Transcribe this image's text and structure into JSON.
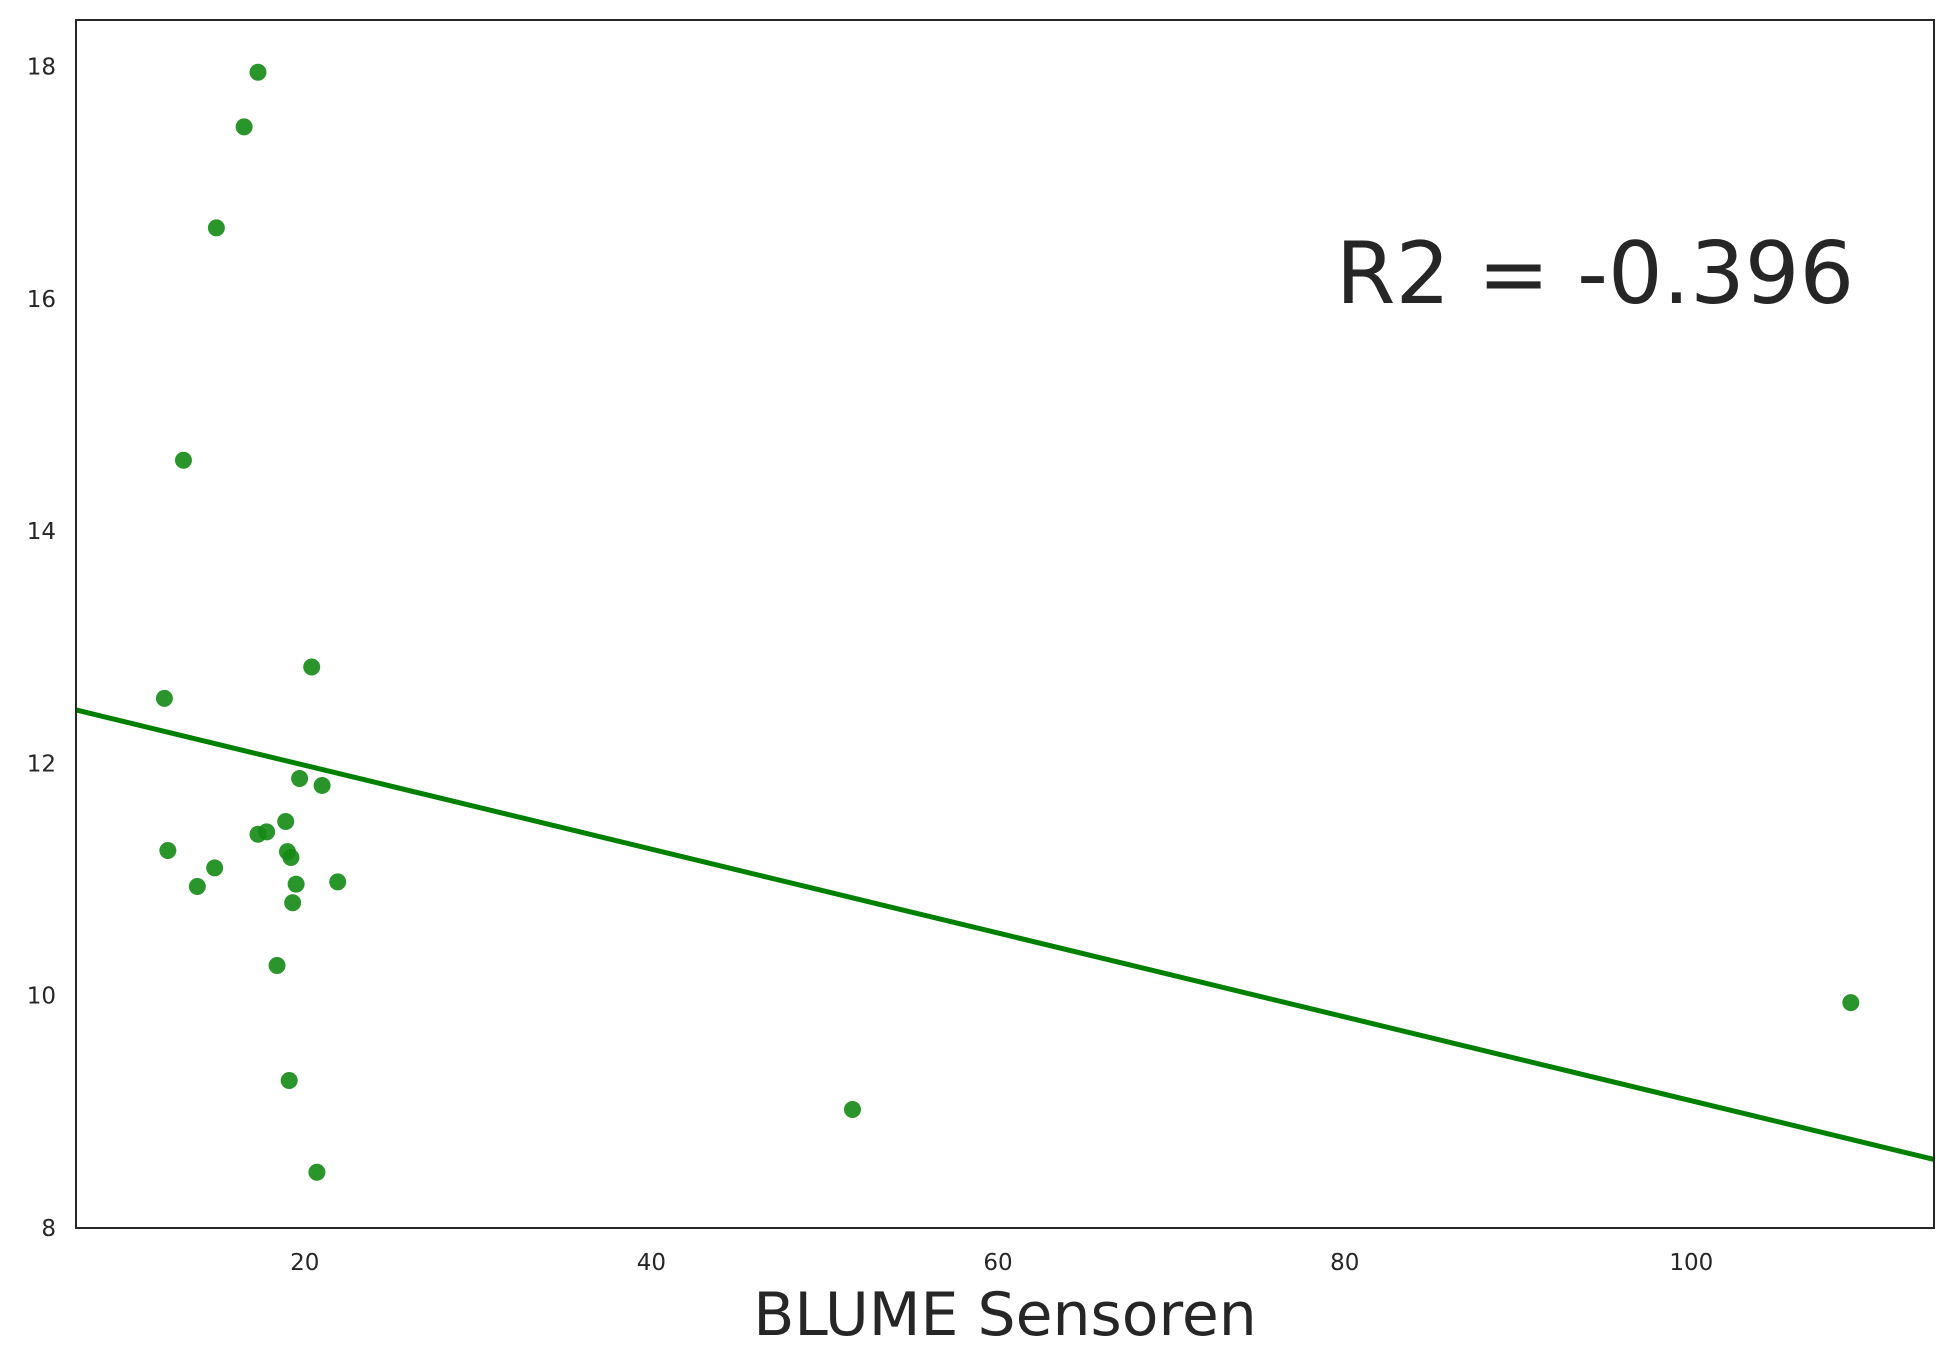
{
  "chart_data": {
    "type": "scatter",
    "xlabel": "BLUME Sensoren",
    "ylabel": "",
    "xlim": [
      6.8,
      114
    ],
    "ylim": [
      8,
      18.4
    ],
    "xticks": [
      20,
      40,
      60,
      80,
      100
    ],
    "yticks": [
      8,
      10,
      12,
      14,
      16,
      18
    ],
    "grid": false,
    "color": "#138a13",
    "line_color": "#008000",
    "points": [
      {
        "x": 17.3,
        "y": 17.95
      },
      {
        "x": 16.5,
        "y": 17.48
      },
      {
        "x": 14.9,
        "y": 16.61
      },
      {
        "x": 13.0,
        "y": 14.61
      },
      {
        "x": 20.4,
        "y": 12.83
      },
      {
        "x": 11.9,
        "y": 12.56
      },
      {
        "x": 19.7,
        "y": 11.87
      },
      {
        "x": 21.0,
        "y": 11.81
      },
      {
        "x": 18.9,
        "y": 11.5
      },
      {
        "x": 17.8,
        "y": 11.41
      },
      {
        "x": 17.3,
        "y": 11.39
      },
      {
        "x": 12.1,
        "y": 11.25
      },
      {
        "x": 19.0,
        "y": 11.24
      },
      {
        "x": 19.2,
        "y": 11.19
      },
      {
        "x": 14.8,
        "y": 11.1
      },
      {
        "x": 13.8,
        "y": 10.94
      },
      {
        "x": 19.5,
        "y": 10.96
      },
      {
        "x": 21.9,
        "y": 10.98
      },
      {
        "x": 19.3,
        "y": 10.8
      },
      {
        "x": 18.4,
        "y": 10.26
      },
      {
        "x": 19.1,
        "y": 9.27
      },
      {
        "x": 51.6,
        "y": 9.02
      },
      {
        "x": 20.7,
        "y": 8.48
      },
      {
        "x": 109.2,
        "y": 9.94
      }
    ],
    "regression": {
      "x": [
        6.8,
        114
      ],
      "y": [
        12.46,
        8.59
      ]
    },
    "annotation": "R2 = -0.396"
  }
}
